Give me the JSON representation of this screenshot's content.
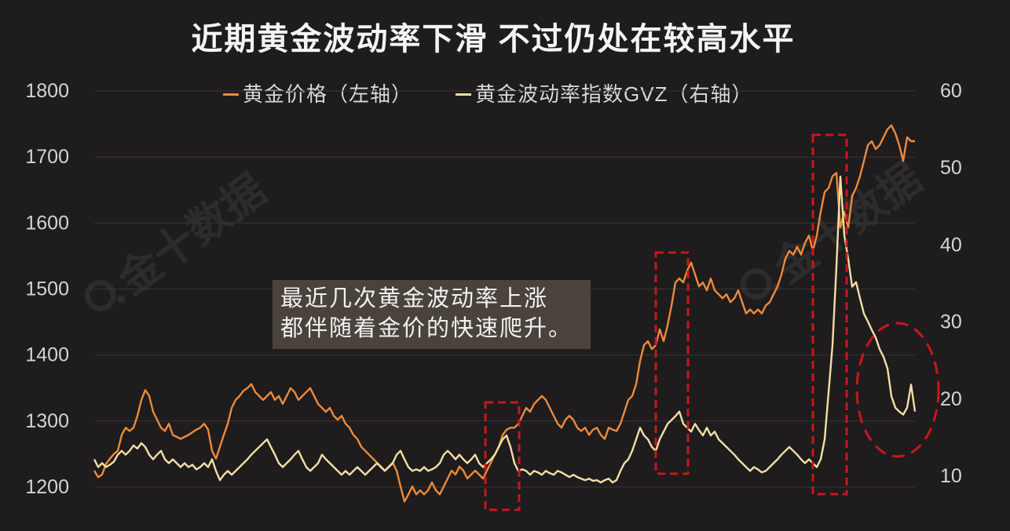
{
  "chart_data": {
    "type": "line",
    "title": "近期黄金波动率下滑 不过仍处在较高水平",
    "y_left": {
      "ylim": [
        1200,
        1800
      ],
      "ticks": [
        1200,
        1300,
        1400,
        1500,
        1600,
        1700,
        1800
      ]
    },
    "y_right": {
      "ylim": [
        8.6,
        60
      ],
      "ticks": [
        10,
        20,
        30,
        40,
        50,
        60
      ]
    },
    "grid": true,
    "legend_position": "top-center",
    "series": [
      {
        "name": "黄金价格（左轴）",
        "axis": "left",
        "color": "#ee8a3a",
        "values": [
          1225,
          1215,
          1219,
          1235,
          1243,
          1250,
          1255,
          1279,
          1290,
          1285,
          1290,
          1308,
          1332,
          1347,
          1338,
          1314,
          1302,
          1290,
          1285,
          1296,
          1279,
          1276,
          1273,
          1276,
          1279,
          1283,
          1287,
          1290,
          1296,
          1287,
          1255,
          1243,
          1261,
          1279,
          1296,
          1320,
          1332,
          1338,
          1346,
          1350,
          1356,
          1344,
          1338,
          1332,
          1338,
          1344,
          1332,
          1338,
          1326,
          1338,
          1350,
          1344,
          1332,
          1338,
          1344,
          1350,
          1338,
          1326,
          1320,
          1314,
          1320,
          1308,
          1302,
          1308,
          1296,
          1290,
          1279,
          1273,
          1261,
          1255,
          1249,
          1243,
          1237,
          1231,
          1225,
          1231,
          1237,
          1225,
          1201,
          1178,
          1189,
          1201,
          1189,
          1195,
          1189,
          1195,
          1207,
          1195,
          1189,
          1201,
          1213,
          1225,
          1219,
          1231,
          1225,
          1213,
          1219,
          1225,
          1219,
          1213,
          1225,
          1237,
          1249,
          1261,
          1279,
          1287,
          1290,
          1290,
          1296,
          1308,
          1320,
          1314,
          1326,
          1332,
          1338,
          1332,
          1320,
          1308,
          1296,
          1290,
          1302,
          1308,
          1302,
          1290,
          1285,
          1290,
          1279,
          1287,
          1290,
          1279,
          1273,
          1290,
          1287,
          1285,
          1296,
          1314,
          1332,
          1338,
          1356,
          1391,
          1415,
          1421,
          1409,
          1415,
          1439,
          1421,
          1445,
          1475,
          1510,
          1516,
          1510,
          1528,
          1540,
          1522,
          1504,
          1510,
          1498,
          1516,
          1498,
          1492,
          1486,
          1492,
          1480,
          1486,
          1498,
          1480,
          1463,
          1469,
          1463,
          1469,
          1463,
          1475,
          1480,
          1492,
          1504,
          1522,
          1546,
          1558,
          1552,
          1564,
          1552,
          1570,
          1581,
          1558,
          1581,
          1617,
          1647,
          1653,
          1671,
          1676,
          1593,
          1617,
          1593,
          1641,
          1653,
          1671,
          1694,
          1718,
          1724,
          1712,
          1718,
          1730,
          1742,
          1748,
          1736,
          1718,
          1694,
          1730,
          1724,
          1724
        ]
      },
      {
        "name": "黄金波动率指数GVZ（右轴）",
        "axis": "right",
        "color": "#f3dea6",
        "values": [
          12.2,
          11.2,
          11.7,
          11.2,
          11.5,
          11.9,
          12.8,
          13.3,
          12.8,
          13.3,
          14.0,
          13.6,
          14.3,
          13.8,
          12.8,
          12.2,
          12.8,
          13.3,
          12.2,
          11.7,
          12.2,
          11.7,
          11.2,
          11.7,
          11.2,
          11.5,
          10.9,
          11.2,
          11.7,
          11.2,
          12.2,
          10.7,
          9.5,
          10.2,
          10.7,
          10.2,
          10.7,
          11.2,
          11.7,
          12.2,
          12.8,
          13.3,
          13.8,
          14.3,
          14.8,
          13.8,
          12.8,
          11.7,
          11.2,
          11.7,
          12.2,
          12.8,
          13.3,
          12.2,
          11.2,
          10.7,
          11.2,
          11.7,
          12.8,
          12.2,
          11.7,
          11.2,
          10.7,
          10.2,
          10.7,
          10.2,
          10.7,
          11.2,
          10.7,
          10.2,
          10.7,
          11.2,
          11.7,
          11.2,
          10.7,
          11.2,
          11.7,
          12.8,
          13.3,
          12.2,
          11.2,
          10.7,
          10.9,
          10.7,
          11.2,
          10.7,
          10.9,
          11.2,
          11.7,
          12.8,
          13.3,
          12.8,
          12.2,
          12.8,
          12.2,
          11.7,
          12.2,
          12.8,
          11.7,
          11.2,
          11.7,
          12.2,
          12.8,
          13.8,
          14.8,
          15.3,
          13.8,
          11.7,
          10.7,
          10.9,
          10.7,
          10.2,
          10.7,
          10.5,
          10.2,
          10.7,
          10.4,
          10.2,
          10.7,
          10.5,
          10.2,
          9.9,
          10.2,
          9.9,
          9.7,
          9.5,
          9.7,
          9.4,
          9.5,
          9.2,
          9.5,
          9.7,
          9.2,
          9.5,
          10.7,
          11.7,
          12.2,
          13.3,
          14.8,
          16.3,
          15.3,
          14.8,
          13.8,
          13.3,
          14.8,
          15.8,
          16.8,
          17.3,
          17.8,
          18.4,
          16.8,
          16.3,
          15.8,
          16.8,
          16.0,
          15.3,
          16.3,
          15.3,
          15.8,
          14.8,
          14.3,
          13.8,
          13.3,
          12.8,
          12.2,
          11.7,
          11.2,
          10.7,
          11.2,
          10.9,
          10.5,
          10.7,
          11.2,
          11.7,
          12.2,
          12.8,
          13.3,
          13.8,
          13.3,
          12.8,
          12.2,
          11.7,
          12.2,
          11.7,
          11.2,
          12.2,
          14.8,
          20.9,
          27.0,
          37.2,
          48.9,
          41.3,
          38.2,
          34.6,
          35.2,
          33.1,
          31.1,
          30.1,
          29.0,
          28.0,
          26.5,
          25.5,
          24.0,
          20.4,
          18.9,
          18.4,
          18.0,
          18.9,
          21.9,
          18.4
        ]
      }
    ],
    "annotation": [
      "最近几次黄金波动率上涨",
      "都伴随着金价的快速爬升。"
    ]
  },
  "colors": {
    "background": "#1e1c1d",
    "gridline": "#393536",
    "highlight": "#c9161c",
    "annotation_bg": "#4a433b"
  },
  "watermark": "金十数据"
}
